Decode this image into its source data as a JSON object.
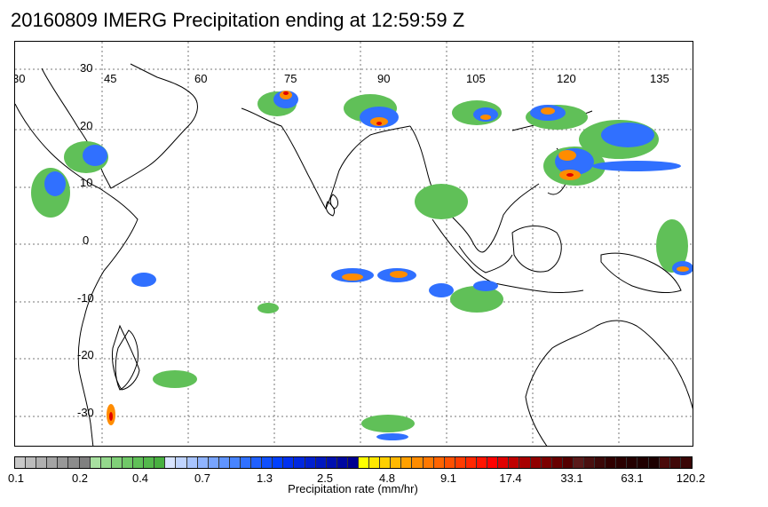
{
  "title": "20160809 IMERG Precipitation ending at 12:59:59 Z",
  "map": {
    "lon_labels": [
      "30",
      "45",
      "60",
      "75",
      "90",
      "105",
      "120",
      "135"
    ],
    "lat_labels": [
      "30",
      "20",
      "10",
      "0",
      "-10",
      "-20",
      "-30"
    ],
    "gridline_style": "dotted"
  },
  "colorbar": {
    "label": "Precipitation rate (mm/hr)",
    "ticks": [
      "0.1",
      "0.2",
      "0.4",
      "0.7",
      "1.3",
      "2.5",
      "4.8",
      "9.1",
      "17.4",
      "33.1",
      "63.1",
      "120.2"
    ],
    "colors": [
      "#c8c8c8",
      "#bcbcbc",
      "#b0b0b0",
      "#a4a4a4",
      "#989898",
      "#8c8c8c",
      "#808080",
      "#a8e0a0",
      "#94d88c",
      "#80d078",
      "#70c868",
      "#60c058",
      "#54b84c",
      "#48b040",
      "#d8e4ff",
      "#c0d4ff",
      "#a8c4ff",
      "#90b4ff",
      "#78a4ff",
      "#6094ff",
      "#4884ff",
      "#3070ff",
      "#2060ff",
      "#1050ff",
      "#0040ff",
      "#0030f0",
      "#0028e0",
      "#0020d0",
      "#0018c0",
      "#0010b0",
      "#0008a0",
      "#000090",
      "#ffff00",
      "#ffe800",
      "#ffd000",
      "#ffb800",
      "#ffa000",
      "#ff8c00",
      "#ff7800",
      "#ff6400",
      "#ff5000",
      "#ff3c00",
      "#ff2800",
      "#ff1400",
      "#ff0000",
      "#e00000",
      "#c00000",
      "#a80000",
      "#900000",
      "#7c0000",
      "#680000",
      "#540000",
      "#5a1a1a",
      "#4a1010",
      "#3c0808",
      "#300000",
      "#2a0000",
      "#240000",
      "#200000",
      "#1c0000",
      "#4a0a0a",
      "#400808",
      "#3a0606"
    ]
  }
}
